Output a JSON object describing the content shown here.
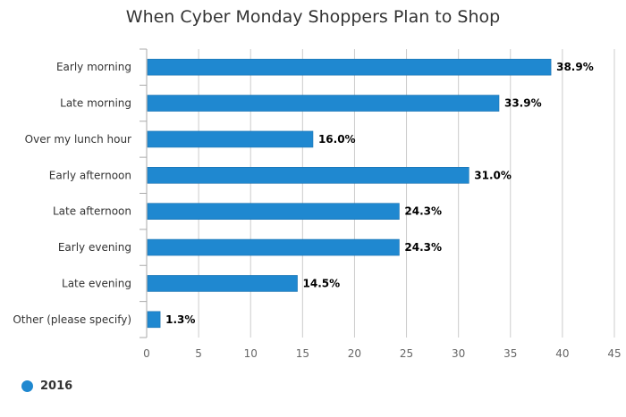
{
  "chart_data": {
    "type": "bar",
    "orientation": "horizontal",
    "title": "When Cyber Monday Shoppers Plan to Shop",
    "categories": [
      "Early morning",
      "Late morning",
      "Over my lunch hour",
      "Early afternoon",
      "Late afternoon",
      "Early evening",
      "Late evening",
      "Other (please specify)"
    ],
    "series": [
      {
        "name": "2016",
        "values": [
          38.9,
          33.9,
          16.0,
          31.0,
          24.3,
          24.3,
          14.5,
          1.3
        ],
        "color": "#1f88d0"
      }
    ],
    "data_labels": [
      "38.9%",
      "33.9%",
      "16.0%",
      "31.0%",
      "24.3%",
      "24.3%",
      "14.5%",
      "1.3%"
    ],
    "xlim": [
      0,
      45
    ],
    "xticks": [
      0,
      5,
      10,
      15,
      20,
      25,
      30,
      35,
      40,
      45
    ],
    "grid": true,
    "legend_position": "bottom-left",
    "colors": {
      "bar": "#1f88d0",
      "grid": "#cccccc",
      "axis": "#aaaaaa",
      "text": "#333333",
      "tick_text": "#666666"
    }
  }
}
